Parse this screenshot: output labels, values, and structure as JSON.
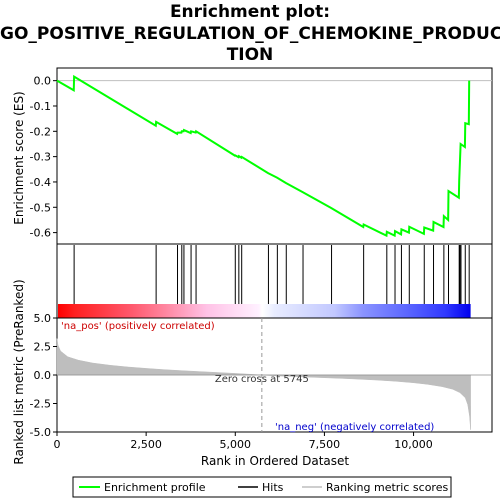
{
  "chart_data": {
    "type": "line",
    "title_lines": [
      "Enrichment plot:",
      "GO_POSITIVE_REGULATION_OF_CHEMOKINE_PRODUC",
      "TION"
    ],
    "xlabel": "Rank in Ordered Dataset",
    "top_ylabel": "Enrichment score (ES)",
    "bottom_ylabel": "Ranked list metric (PreRanked)",
    "xlim": [
      0,
      12200
    ],
    "x_ticks": [
      0,
      2500,
      5000,
      7500,
      10000
    ],
    "x_tick_labels": [
      "0",
      "2,500",
      "5,000",
      "7,500",
      "10,000"
    ],
    "es_ylim": [
      -0.645,
      0.05
    ],
    "es_ticks": [
      0.0,
      -0.1,
      -0.2,
      -0.3,
      -0.4,
      -0.5,
      -0.6
    ],
    "es_tick_labels": [
      "0.0",
      "-0.1",
      "-0.2",
      "-0.3",
      "-0.4",
      "-0.5",
      "-0.6"
    ],
    "metric_ylim": [
      -5,
      5
    ],
    "metric_ticks": [
      5,
      2.5,
      0,
      -2.5,
      -5
    ],
    "metric_tick_labels": [
      "5.0",
      "2.5",
      "0.0",
      "-2.5",
      "-5.0"
    ],
    "total_rank": 11600,
    "hits": [
      480,
      2780,
      3380,
      3500,
      3560,
      3760,
      3900,
      5000,
      5100,
      5180,
      5930,
      6180,
      6430,
      6900,
      7700,
      8600,
      9250,
      9480,
      9660,
      9880,
      10300,
      10560,
      10850,
      10980,
      11280,
      11300,
      11330,
      11450,
      11560
    ],
    "enrichment_profile": [
      [
        0,
        0.0
      ],
      [
        470,
        -0.038
      ],
      [
        480,
        0.016
      ],
      [
        2770,
        -0.178
      ],
      [
        2780,
        -0.163
      ],
      [
        3370,
        -0.21
      ],
      [
        3380,
        -0.205
      ],
      [
        3490,
        -0.205
      ],
      [
        3500,
        -0.2
      ],
      [
        3550,
        -0.2
      ],
      [
        3560,
        -0.195
      ],
      [
        3750,
        -0.207
      ],
      [
        3760,
        -0.2
      ],
      [
        3890,
        -0.205
      ],
      [
        3900,
        -0.2
      ],
      [
        4990,
        -0.296
      ],
      [
        5000,
        -0.295
      ],
      [
        5090,
        -0.302
      ],
      [
        5100,
        -0.298
      ],
      [
        5170,
        -0.304
      ],
      [
        5180,
        -0.301
      ],
      [
        5920,
        -0.365
      ],
      [
        6170,
        -0.383
      ],
      [
        6420,
        -0.404
      ],
      [
        6890,
        -0.44
      ],
      [
        7690,
        -0.503
      ],
      [
        8590,
        -0.578
      ],
      [
        8600,
        -0.568
      ],
      [
        9240,
        -0.612
      ],
      [
        9250,
        -0.597
      ],
      [
        9470,
        -0.612
      ],
      [
        9480,
        -0.594
      ],
      [
        9650,
        -0.607
      ],
      [
        9660,
        -0.587
      ],
      [
        9870,
        -0.6
      ],
      [
        9880,
        -0.577
      ],
      [
        10290,
        -0.605
      ],
      [
        10300,
        -0.58
      ],
      [
        10550,
        -0.592
      ],
      [
        10560,
        -0.558
      ],
      [
        10840,
        -0.578
      ],
      [
        10850,
        -0.535
      ],
      [
        10970,
        -0.55
      ],
      [
        10980,
        -0.436
      ],
      [
        11270,
        -0.462
      ],
      [
        11280,
        -0.395
      ],
      [
        11300,
        -0.323
      ],
      [
        11320,
        -0.25
      ],
      [
        11440,
        -0.262
      ],
      [
        11450,
        -0.168
      ],
      [
        11550,
        -0.172
      ],
      [
        11560,
        0.0
      ]
    ],
    "zero_cross_label": "Zero cross at 5745",
    "zero_cross_rank": 5745,
    "pos_label": "'na_pos' (positively correlated)",
    "neg_label": "'na_neg' (negatively correlated)",
    "metric_curve": [
      [
        0,
        3.2
      ],
      [
        30,
        2.6
      ],
      [
        100,
        2.1
      ],
      [
        300,
        1.6
      ],
      [
        600,
        1.3
      ],
      [
        1000,
        1.05
      ],
      [
        1500,
        0.85
      ],
      [
        2000,
        0.7
      ],
      [
        2500,
        0.58
      ],
      [
        3000,
        0.47
      ],
      [
        3500,
        0.38
      ],
      [
        4000,
        0.3
      ],
      [
        4500,
        0.22
      ],
      [
        5000,
        0.14
      ],
      [
        5500,
        0.05
      ],
      [
        5745,
        0.0
      ],
      [
        6000,
        -0.05
      ],
      [
        6500,
        -0.12
      ],
      [
        7000,
        -0.18
      ],
      [
        7500,
        -0.24
      ],
      [
        8000,
        -0.3
      ],
      [
        8500,
        -0.37
      ],
      [
        9000,
        -0.45
      ],
      [
        9500,
        -0.55
      ],
      [
        10000,
        -0.68
      ],
      [
        10400,
        -0.82
      ],
      [
        10800,
        -1.02
      ],
      [
        11100,
        -1.25
      ],
      [
        11300,
        -1.55
      ],
      [
        11450,
        -2.0
      ],
      [
        11520,
        -2.6
      ],
      [
        11570,
        -3.6
      ],
      [
        11600,
        -4.8
      ]
    ],
    "legend": [
      "Enrichment profile",
      "Hits",
      "Ranking metric scores"
    ],
    "colors": {
      "profile": "#00ff00",
      "hits": "#000000",
      "metric": "#bebebe",
      "pos": "#ff0000",
      "neg": "#0000ff"
    }
  }
}
